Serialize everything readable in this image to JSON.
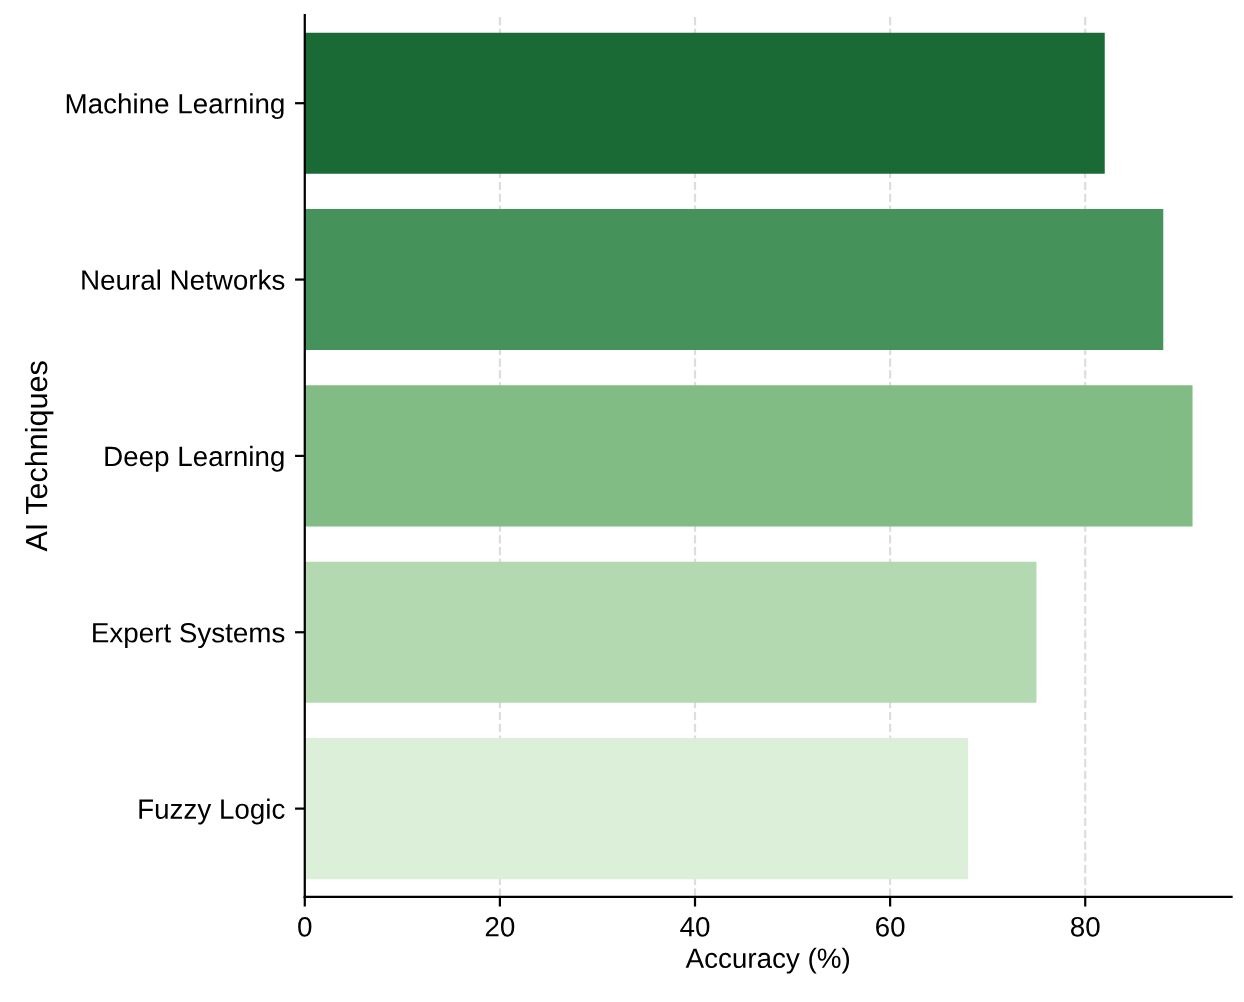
{
  "chart_data": {
    "type": "bar",
    "orientation": "horizontal",
    "xlabel": "Accuracy (%)",
    "ylabel": "AI Techniques",
    "categories": [
      "Machine Learning",
      "Neural Networks",
      "Deep Learning",
      "Expert Systems",
      "Fuzzy Logic"
    ],
    "values": [
      82,
      88,
      91,
      75,
      68
    ],
    "colors": [
      "#1a6a35",
      "#45935b",
      "#80bc83",
      "#b3d9b0",
      "#dcefd8"
    ],
    "xlim": [
      0,
      95
    ],
    "xticks": [
      0,
      20,
      40,
      60,
      80
    ],
    "grid": "x",
    "line_style": "dashed"
  }
}
